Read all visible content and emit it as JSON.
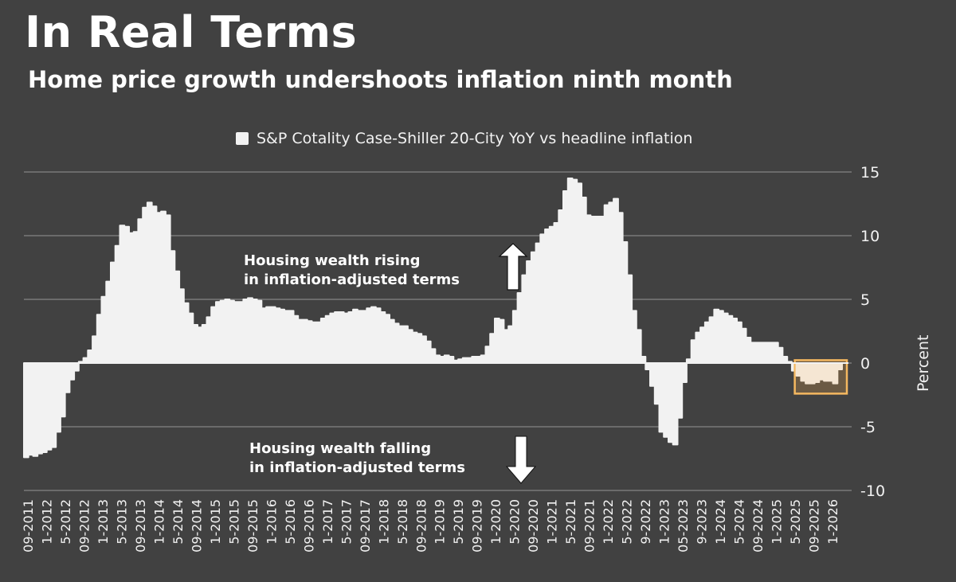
{
  "header": {
    "title": "In Real Terms",
    "subtitle": "Home price growth undershoots inflation ninth month"
  },
  "legend": {
    "label": "S&P Cotality Case-Shiller 20-City YoY vs headline inflation",
    "swatch_color": "#f2f2f2"
  },
  "axis": {
    "y_title": "Percent",
    "y_ticks": [
      "15",
      "10",
      "5",
      "0",
      "-5",
      "-10"
    ]
  },
  "annotations": {
    "rising_line1": "Housing wealth rising",
    "rising_line2": "in inflation-adjusted terms",
    "falling_line1": "Housing wealth falling",
    "falling_line2": "in inflation-adjusted terms"
  },
  "colors": {
    "background": "#414141",
    "area": "#f2f2f2",
    "grid": "#6b6b6b",
    "highlight_fill": "#6b5a44",
    "highlight_area": "#f5e6d3",
    "highlight_border": "#f5b860"
  },
  "chart_data": {
    "type": "area",
    "title": "In Real Terms",
    "subtitle": "Home price growth undershoots inflation ninth month",
    "series_name": "S&P Cotality Case-Shiller 20-City YoY vs headline inflation",
    "xlabel": "",
    "ylabel": "Percent",
    "ylim": [
      -10,
      15
    ],
    "yticks": [
      -10,
      -5,
      0,
      5,
      10,
      15
    ],
    "grid": true,
    "legend_position": "top",
    "x_tick_labels": [
      "09-2011",
      "1-2012",
      "5-2012",
      "09-2012",
      "1-2013",
      "5-2013",
      "09-2013",
      "1-2014",
      "5-2014",
      "09-2014",
      "1-2015",
      "5-2015",
      "09-2015",
      "1-2016",
      "5-2016",
      "09-2016",
      "1-2017",
      "5-2017",
      "09-2017",
      "1-2018",
      "5-2018",
      "09-2018",
      "1-2019",
      "5-2019",
      "09-2019",
      "1-2020",
      "5-2020",
      "09-2020",
      "1-2021",
      "5-2021",
      "09-2021",
      "1-2022",
      "5-2022",
      "9-2022",
      "1-2023",
      "05-2023",
      "9-2023",
      "1-2024",
      "5-2024",
      "09-2024",
      "1-2025",
      "5-2025",
      "09-2025",
      "1-2026"
    ],
    "start_month": "09-2011",
    "values": [
      -7.4,
      -7.2,
      -7.3,
      -7.1,
      -7.0,
      -6.8,
      -6.6,
      -5.4,
      -4.2,
      -2.3,
      -1.3,
      -0.6,
      0.1,
      0.4,
      1.0,
      2.1,
      3.8,
      5.2,
      6.4,
      7.9,
      9.2,
      10.8,
      10.7,
      10.2,
      10.3,
      11.3,
      12.2,
      12.6,
      12.3,
      11.8,
      11.9,
      11.6,
      8.8,
      7.2,
      5.8,
      4.7,
      3.9,
      3.0,
      2.8,
      3.0,
      3.6,
      4.4,
      4.8,
      4.9,
      5.0,
      4.9,
      4.8,
      4.8,
      5.0,
      5.1,
      5.0,
      4.9,
      4.3,
      4.4,
      4.4,
      4.3,
      4.2,
      4.1,
      4.1,
      3.7,
      3.4,
      3.4,
      3.3,
      3.2,
      3.2,
      3.5,
      3.7,
      3.9,
      4.0,
      4.0,
      3.9,
      4.0,
      4.2,
      4.1,
      4.1,
      4.3,
      4.4,
      4.3,
      4.0,
      3.8,
      3.4,
      3.1,
      2.9,
      2.9,
      2.6,
      2.4,
      2.3,
      2.1,
      1.7,
      1.1,
      0.6,
      0.5,
      0.6,
      0.5,
      0.2,
      0.3,
      0.4,
      0.4,
      0.5,
      0.5,
      0.6,
      1.3,
      2.3,
      3.5,
      3.4,
      2.6,
      2.9,
      4.1,
      5.5,
      6.9,
      8.0,
      8.7,
      9.4,
      10.1,
      10.5,
      10.7,
      11.0,
      12.0,
      13.5,
      14.5,
      14.4,
      14.1,
      13.0,
      11.6,
      11.5,
      11.5,
      11.5,
      12.4,
      12.6,
      12.9,
      11.8,
      9.5,
      6.9,
      4.1,
      2.6,
      0.5,
      -0.5,
      -1.8,
      -3.2,
      -5.4,
      -5.8,
      -6.2,
      -6.4,
      -4.3,
      -1.5,
      0.3,
      1.8,
      2.4,
      2.8,
      3.2,
      3.6,
      4.2,
      4.1,
      3.9,
      3.7,
      3.5,
      3.2,
      2.7,
      2.0,
      1.6,
      1.6,
      1.6,
      1.6,
      1.6,
      1.6,
      1.2,
      0.5,
      0.1,
      -0.6,
      -1.0,
      -1.4,
      -1.6,
      -1.6,
      -1.5,
      -1.3,
      -1.4,
      -1.4,
      -1.6,
      -0.5
    ],
    "highlight_region": {
      "from_month": "05-2025",
      "to_month": "02-2026",
      "value_range": [
        -2.4,
        0.1
      ]
    }
  }
}
